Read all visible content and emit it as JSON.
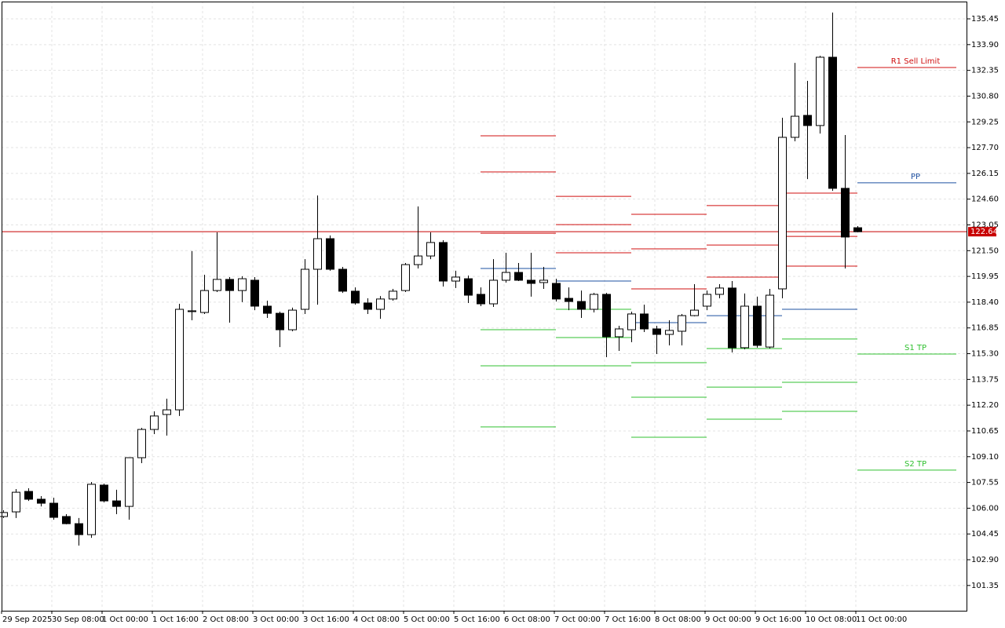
{
  "chart_data": {
    "type": "candlestick",
    "categories": [
      "29 Sep 2025",
      null,
      null,
      null,
      "30 Sep 08:00",
      null,
      null,
      null,
      "1 Oct 00:00",
      null,
      null,
      null,
      "1 Oct 16:00",
      null,
      null,
      null,
      "2 Oct 08:00",
      null,
      null,
      null,
      "3 Oct 00:00",
      null,
      null,
      null,
      "3 Oct 16:00",
      null,
      null,
      null,
      "4 Oct 08:00",
      null,
      null,
      null,
      "5 Oct 00:00",
      null,
      null,
      null,
      "5 Oct 16:00",
      null,
      null,
      null,
      "6 Oct 08:00",
      null,
      null,
      null,
      "7 Oct 00:00",
      null,
      null,
      null,
      "7 Oct 16:00",
      null,
      null,
      null,
      "8 Oct 08:00",
      null,
      null,
      null,
      "9 Oct 00:00",
      null,
      null,
      null,
      "9 Oct 16:00",
      null,
      null,
      null,
      "10 Oct 08:00",
      null,
      null,
      null,
      "11 Oct 00:00"
    ],
    "open": [
      105.5,
      105.78,
      107.01,
      106.54,
      106.3,
      105.5,
      105.07,
      104.41,
      107.39,
      106.44,
      106.11,
      109.04,
      110.74,
      111.64,
      111.92,
      117.83,
      117.78,
      119.1,
      119.77,
      119.1,
      119.72,
      118.16,
      117.73,
      116.74,
      117.97,
      120.38,
      122.22,
      120.38,
      119.06,
      118.35,
      117.97,
      118.59,
      119.1,
      120.66,
      121.18,
      121.99,
      119.67,
      119.81,
      118.87,
      118.3,
      119.72,
      120.19,
      119.72,
      119.58,
      119.53,
      118.63,
      118.44,
      117.97,
      118.87,
      116.32,
      116.74,
      117.69,
      116.79,
      116.46,
      116.65,
      117.59,
      118.16,
      118.87,
      119.25,
      115.66,
      118.16,
      115.7,
      119.2,
      128.32,
      129.64,
      129.03,
      133.14,
      125.25,
      122.88
    ],
    "high": [
      105.88,
      107.15,
      107.2,
      106.73,
      106.63,
      105.64,
      105.41,
      107.58,
      107.48,
      107.11,
      109.04,
      110.84,
      111.83,
      112.59,
      118.3,
      121.47,
      120.05,
      122.6,
      119.91,
      119.96,
      119.91,
      118.49,
      117.83,
      118.07,
      120.99,
      124.82,
      122.41,
      120.52,
      119.29,
      118.63,
      118.77,
      119.2,
      120.76,
      124.16,
      122.6,
      122.13,
      120.29,
      120.0,
      119.29,
      120.99,
      121.37,
      120.76,
      121.37,
      120.52,
      119.81,
      119.29,
      119.1,
      118.96,
      118.96,
      116.98,
      117.83,
      118.25,
      116.98,
      117.31,
      117.69,
      119.48,
      119.1,
      119.48,
      119.67,
      118.92,
      118.73,
      119.2,
      129.5,
      132.8,
      131.72,
      133.23,
      135.83,
      128.46,
      122.98
    ],
    "low": [
      105.41,
      105.41,
      106.44,
      106.11,
      105.31,
      105.03,
      103.75,
      104.22,
      106.35,
      105.64,
      105.31,
      108.71,
      110.46,
      110.37,
      111.55,
      117.31,
      117.69,
      119.01,
      117.17,
      118.4,
      117.92,
      117.45,
      115.7,
      116.65,
      117.69,
      118.25,
      120.29,
      118.96,
      118.25,
      117.69,
      117.4,
      118.49,
      119.01,
      120.43,
      120.99,
      119.34,
      119.25,
      118.35,
      118.16,
      118.11,
      119.58,
      119.67,
      118.73,
      119.2,
      118.44,
      117.92,
      117.45,
      117.78,
      115.09,
      115.47,
      115.99,
      116.6,
      115.28,
      115.8,
      115.8,
      117.55,
      117.92,
      118.63,
      115.37,
      115.56,
      115.66,
      115.61,
      118.63,
      128.08,
      125.81,
      128.55,
      125.1,
      120.43,
      122.6
    ],
    "close": [
      105.74,
      106.96,
      106.54,
      106.3,
      105.45,
      105.07,
      104.41,
      107.44,
      106.44,
      106.11,
      109.04,
      110.74,
      111.55,
      111.92,
      117.97,
      117.88,
      119.1,
      119.77,
      119.1,
      119.81,
      118.16,
      117.73,
      116.74,
      117.92,
      120.38,
      122.22,
      120.38,
      119.06,
      118.35,
      117.97,
      118.59,
      119.06,
      120.66,
      121.18,
      121.99,
      119.67,
      119.91,
      118.82,
      118.3,
      119.72,
      120.19,
      119.72,
      119.53,
      119.72,
      118.59,
      118.44,
      117.97,
      118.87,
      116.32,
      116.79,
      117.69,
      116.79,
      116.46,
      116.7,
      117.59,
      117.92,
      118.87,
      119.25,
      115.66,
      118.16,
      115.8,
      118.82,
      128.32,
      129.59,
      129.03,
      133.14,
      125.25,
      122.32,
      122.64
    ],
    "up_color": "#ffffff",
    "down_color": "#000000",
    "ylim": [
      99.83,
      136.49
    ],
    "yticks": [
      101.35,
      {
        "value": 102.9,
        "label": "102.90"
      },
      104.45,
      {
        "value": 106.0,
        "label": "106.00"
      },
      107.55,
      {
        "value": 109.1,
        "label": "109.10"
      },
      110.65,
      {
        "value": 112.2,
        "label": "112.20"
      },
      113.75,
      {
        "value": 115.3,
        "label": "115.30"
      },
      116.85,
      {
        "value": 118.4,
        "label": "118.40"
      },
      119.95,
      {
        "value": 121.5,
        "label": "121.50"
      },
      123.05,
      {
        "value": 124.6,
        "label": "124.60"
      },
      126.15,
      {
        "value": 127.7,
        "label": "127.70"
      },
      129.25,
      {
        "value": 130.8,
        "label": "130.80"
      },
      132.35,
      {
        "value": 133.9,
        "label": "133.90"
      },
      135.45
    ],
    "grid": true,
    "current_price": 122.64,
    "current_price_color": "#c80000",
    "resistance_color": "#d01010",
    "pivot_color": "#1e50a0",
    "support_color": "#30c030",
    "pivot_levels": [
      {
        "resistance": [
          128.41,
          126.24,
          122.55
        ],
        "pivot": 120.43,
        "support": [
          116.74,
          114.57,
          110.89
        ]
      },
      {
        "resistance": [
          124.77,
          123.07,
          121.37
        ],
        "pivot": 119.67,
        "support": [
          117.97,
          116.27,
          114.57
        ]
      },
      {
        "resistance": [
          123.69,
          121.61,
          119.2
        ],
        "pivot": 117.17,
        "support": [
          114.76,
          112.68,
          110.27
        ]
      },
      {
        "resistance": [
          124.21,
          121.84,
          119.91
        ],
        "pivot": 117.59,
        "support": [
          115.61,
          113.29,
          111.36
        ]
      },
      {
        "resistance": [
          124.96,
          122.36,
          120.57
        ],
        "pivot": 117.97,
        "support": [
          116.18,
          113.58,
          111.83
        ]
      }
    ],
    "latest_levels": [
      {
        "name": "R1 Sell Limit",
        "value": 132.52,
        "kind": "resistance"
      },
      {
        "name": "PP",
        "value": 125.58,
        "kind": "pivot"
      },
      {
        "name": "S1 TP",
        "value": 115.28,
        "kind": "support"
      },
      {
        "name": "S2 TP",
        "value": 108.29,
        "kind": "support"
      }
    ]
  }
}
